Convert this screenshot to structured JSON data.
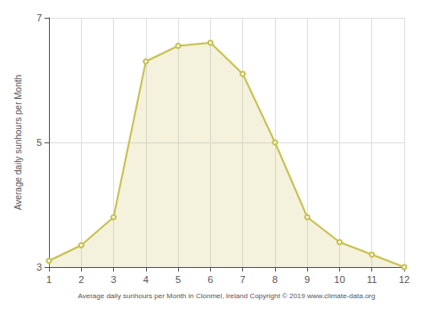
{
  "chart_data": {
    "type": "area",
    "x": [
      1,
      2,
      3,
      4,
      5,
      6,
      7,
      8,
      9,
      10,
      11,
      12
    ],
    "values": [
      3.1,
      3.35,
      3.8,
      6.3,
      6.55,
      6.6,
      6.1,
      5.0,
      3.8,
      3.4,
      3.2,
      3.0
    ],
    "color": "#C8C050",
    "marker": "circle",
    "xlabel": "Average daily sunhours per Month in Clonmel, Ireland Copyright © 2019 www.climate-data.org",
    "ylabel": "Average daily sunhours per Month",
    "xlim": [
      1,
      12
    ],
    "xticks": [
      1,
      2,
      3,
      4,
      5,
      6,
      7,
      8,
      9,
      10,
      11,
      12
    ],
    "ylim": [
      3,
      7
    ],
    "yticks": [
      3,
      5,
      7
    ],
    "grid": true
  }
}
